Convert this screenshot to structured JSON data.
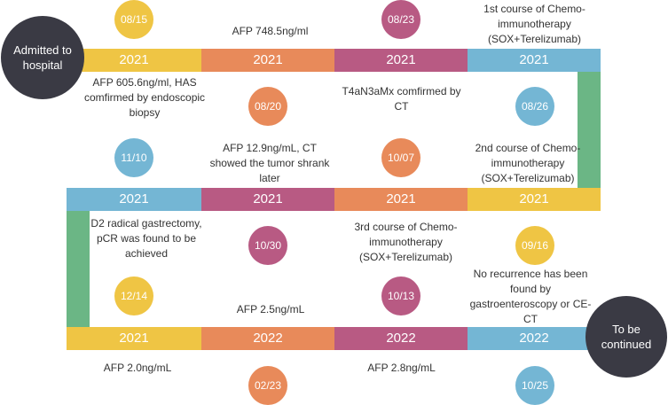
{
  "colors": {
    "yellow": "#efc544",
    "orange": "#e88a5a",
    "magenta": "#b85a83",
    "blue": "#74b6d4",
    "green": "#6bb685",
    "dark": "#3a3a44"
  },
  "start_circle": "Admitted to hospital",
  "end_circle": "To be continued",
  "rows": [
    [
      {
        "year": "2021",
        "date": "08/15",
        "note": "AFP 605.6ng/ml, HAS comfirmed by endoscopic biopsy"
      },
      {
        "year": "2021",
        "date": "08/20",
        "note": "AFP 748.5ng/ml"
      },
      {
        "year": "2021",
        "date": "08/23",
        "note": "T4aN3aMx comfirmed by CT"
      },
      {
        "year": "2021",
        "date": "08/26",
        "note": "1st course of Chemo-immunotherapy (SOX+Terelizumab)"
      }
    ],
    [
      {
        "year": "2021",
        "date": "11/10",
        "note": "D2 radical gastrectomy, pCR was found to be achieved"
      },
      {
        "year": "2021",
        "date": "10/30",
        "note": "AFP 12.9ng/mL, CT showed the tumor shrank later"
      },
      {
        "year": "2021",
        "date": "10/07",
        "note": "3rd course of Chemo-immunotherapy (SOX+Terelizumab)"
      },
      {
        "year": "2021",
        "date": "09/16",
        "note": "2nd course of Chemo-immunotherapy (SOX+Terelizumab)"
      }
    ],
    [
      {
        "year": "2021",
        "date": "12/14",
        "note": "AFP 2.0ng/mL"
      },
      {
        "year": "2022",
        "date": "02/23",
        "note": "AFP 2.5ng/mL"
      },
      {
        "year": "2022",
        "date": "10/13",
        "note": "AFP 2.8ng/mL"
      },
      {
        "year": "2022",
        "date": "10/25",
        "note": "No recurrence has been found by gastroenteroscopy or CE-CT"
      }
    ]
  ]
}
